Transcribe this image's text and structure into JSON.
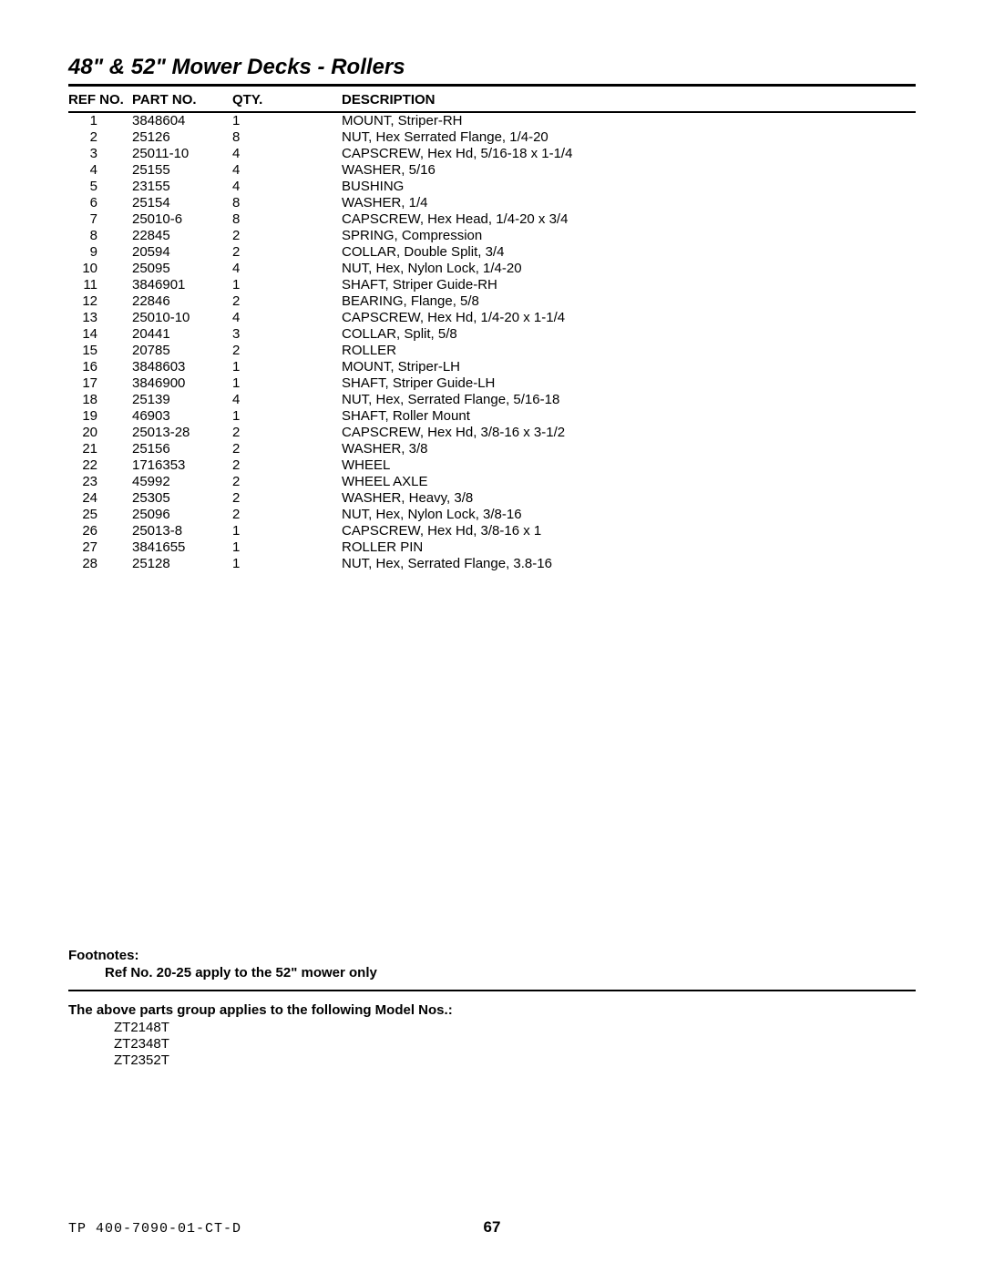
{
  "title": "48\" & 52\" Mower Decks - Rollers",
  "headers": {
    "ref": "Ref No.",
    "part": "Part No.",
    "qty": "Qty.",
    "desc": "Description"
  },
  "rows": [
    {
      "ref": "1",
      "part": "3848604",
      "qty": "1",
      "desc": "MOUNT, Striper-RH"
    },
    {
      "ref": "2",
      "part": "25126",
      "qty": "8",
      "desc": "NUT, Hex Serrated Flange, 1/4-20"
    },
    {
      "ref": "3",
      "part": "25011-10",
      "qty": "4",
      "desc": "CAPSCREW, Hex Hd, 5/16-18 x 1-1/4"
    },
    {
      "ref": "4",
      "part": "25155",
      "qty": "4",
      "desc": "WASHER, 5/16"
    },
    {
      "ref": "5",
      "part": "23155",
      "qty": "4",
      "desc": "BUSHING"
    },
    {
      "ref": "6",
      "part": "25154",
      "qty": "8",
      "desc": "WASHER, 1/4"
    },
    {
      "ref": "7",
      "part": "25010-6",
      "qty": "8",
      "desc": "CAPSCREW, Hex Head, 1/4-20 x 3/4"
    },
    {
      "ref": "8",
      "part": "22845",
      "qty": "2",
      "desc": "SPRING, Compression"
    },
    {
      "ref": "9",
      "part": "20594",
      "qty": "2",
      "desc": "COLLAR, Double Split, 3/4"
    },
    {
      "ref": "10",
      "part": "25095",
      "qty": "4",
      "desc": "NUT, Hex, Nylon Lock, 1/4-20"
    },
    {
      "ref": "11",
      "part": "3846901",
      "qty": "1",
      "desc": "SHAFT, Striper Guide-RH"
    },
    {
      "ref": "12",
      "part": "22846",
      "qty": "2",
      "desc": "BEARING, Flange, 5/8"
    },
    {
      "ref": "13",
      "part": "25010-10",
      "qty": "4",
      "desc": "CAPSCREW, Hex Hd, 1/4-20 x 1-1/4"
    },
    {
      "ref": "14",
      "part": "20441",
      "qty": "3",
      "desc": "COLLAR, Split, 5/8"
    },
    {
      "ref": "15",
      "part": "20785",
      "qty": "2",
      "desc": "ROLLER"
    },
    {
      "ref": "16",
      "part": "3848603",
      "qty": "1",
      "desc": "MOUNT, Striper-LH"
    },
    {
      "ref": "17",
      "part": "3846900",
      "qty": "1",
      "desc": "SHAFT, Striper Guide-LH"
    },
    {
      "ref": "18",
      "part": "25139",
      "qty": "4",
      "desc": "NUT, Hex, Serrated Flange, 5/16-18"
    },
    {
      "ref": "19",
      "part": "46903",
      "qty": "1",
      "desc": "SHAFT, Roller Mount"
    },
    {
      "ref": "20",
      "part": "25013-28",
      "qty": "2",
      "desc": "CAPSCREW, Hex Hd, 3/8-16 x 3-1/2"
    },
    {
      "ref": "21",
      "part": "25156",
      "qty": "2",
      "desc": "WASHER, 3/8"
    },
    {
      "ref": "22",
      "part": "1716353",
      "qty": "2",
      "desc": "WHEEL"
    },
    {
      "ref": "23",
      "part": "45992",
      "qty": "2",
      "desc": "WHEEL AXLE"
    },
    {
      "ref": "24",
      "part": "25305",
      "qty": "2",
      "desc": "WASHER, Heavy, 3/8"
    },
    {
      "ref": "25",
      "part": "25096",
      "qty": "2",
      "desc": "NUT, Hex, Nylon Lock, 3/8-16"
    },
    {
      "ref": "26",
      "part": "25013-8",
      "qty": "1",
      "desc": "CAPSCREW, Hex Hd, 3/8-16 x 1"
    },
    {
      "ref": "27",
      "part": "3841655",
      "qty": "1",
      "desc": "ROLLER PIN"
    },
    {
      "ref": "28",
      "part": "25128",
      "qty": "1",
      "desc": "NUT, Hex, Serrated Flange, 3.8-16"
    }
  ],
  "footnotes": {
    "heading": "Footnotes:",
    "line": "Ref No. 20-25 apply to the 52\" mower only"
  },
  "applies": {
    "heading": "The above parts group applies to the following Model Nos.:",
    "models": [
      "ZT2148T",
      "ZT2348T",
      "ZT2352T"
    ]
  },
  "footer": {
    "doc_code": "TP 400-7090-01-CT-D",
    "page_num": "67"
  }
}
